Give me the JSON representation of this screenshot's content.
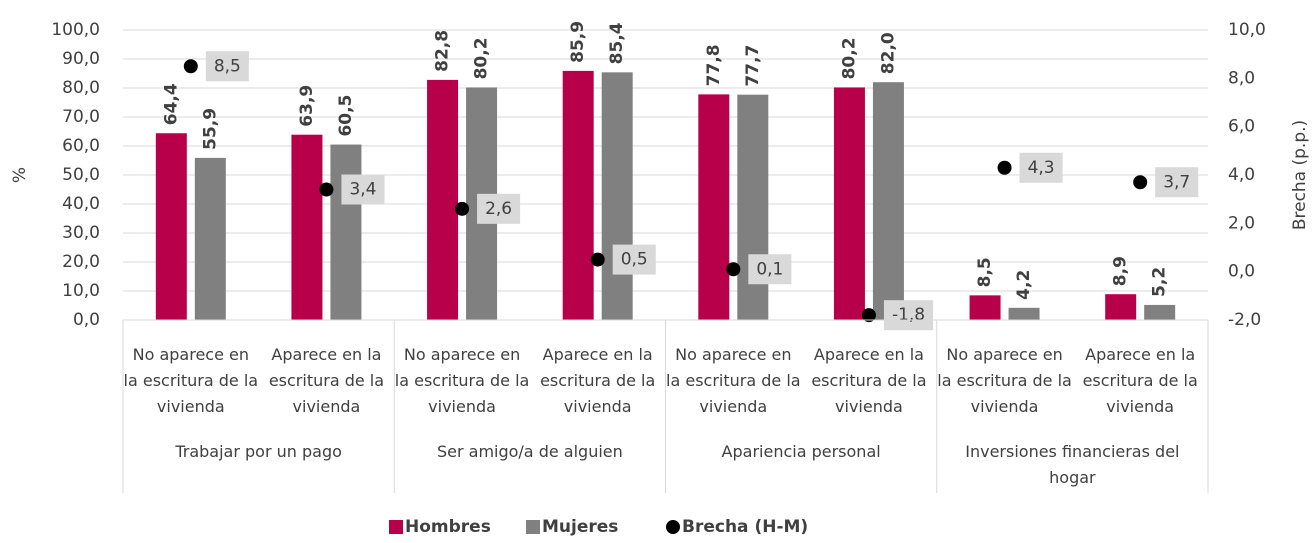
{
  "chart_data": {
    "type": "bar",
    "ylabel": "%",
    "y2label": "Brecha (p.p.)",
    "categories": [
      "No aparece en la escritura de la vivienda",
      "Aparece en la escritura de la vivienda",
      "No aparece en la escritura de la vivienda",
      "Aparece en la escritura de la vivienda",
      "No aparece en la escritura de la vivienda",
      "Aparece en la escritura de la vivienda",
      "No aparece en la escritura de la vivienda",
      "Aparece en la escritura de la vivienda"
    ],
    "groups": [
      "Trabajar por un pago",
      "Ser amigo/a de alguien",
      "Apariencia personal",
      "Inversiones financieras del hogar"
    ],
    "series": [
      {
        "name": "Hombres",
        "color": "#b8004a",
        "type": "bar",
        "values": [
          64.4,
          63.9,
          82.8,
          85.9,
          77.8,
          80.2,
          8.5,
          8.9
        ],
        "value_labels": [
          "64,4",
          "63,9",
          "82,8",
          "85,9",
          "77,8",
          "80,2",
          "8,5",
          "8,9"
        ]
      },
      {
        "name": "Mujeres",
        "color": "#808080",
        "type": "bar",
        "values": [
          55.9,
          60.5,
          80.2,
          85.4,
          77.7,
          82.0,
          4.2,
          5.2
        ],
        "value_labels": [
          "55,9",
          "60,5",
          "80,2",
          "85,4",
          "77,7",
          "82,0",
          "4,2",
          "5,2"
        ]
      },
      {
        "name": "Brecha (H-M)",
        "color": "#000000",
        "type": "scatter",
        "axis": "y2",
        "values": [
          8.5,
          3.4,
          2.6,
          0.5,
          0.1,
          -1.8,
          4.3,
          3.7
        ],
        "value_labels": [
          "8,5",
          "3,4",
          "2,6",
          "0,5",
          "0,1",
          "-1,8",
          "4,3",
          "3,7"
        ]
      }
    ],
    "ylim": [
      0,
      100
    ],
    "yticks": [
      {
        "value": 0,
        "label": "0,0"
      },
      {
        "value": 10,
        "label": "10,0"
      },
      {
        "value": 20,
        "label": "20,0"
      },
      {
        "value": 30,
        "label": "30,0"
      },
      {
        "value": 40,
        "label": "40,0"
      },
      {
        "value": 50,
        "label": "50,0"
      },
      {
        "value": 60,
        "label": "60,0"
      },
      {
        "value": 70,
        "label": "70,0"
      },
      {
        "value": 80,
        "label": "80,0"
      },
      {
        "value": 90,
        "label": "90,0"
      },
      {
        "value": 100,
        "label": "100,0"
      }
    ],
    "y2lim": [
      -2,
      10
    ],
    "y2ticks": [
      {
        "value": -2,
        "label": "-2,0"
      },
      {
        "value": 0,
        "label": "0,0"
      },
      {
        "value": 2,
        "label": "2,0"
      },
      {
        "value": 4,
        "label": "4,0"
      },
      {
        "value": 6,
        "label": "6,0"
      },
      {
        "value": 8,
        "label": "8,0"
      },
      {
        "value": 10,
        "label": "10,0"
      }
    ],
    "grid": true,
    "legend": "bottom"
  }
}
